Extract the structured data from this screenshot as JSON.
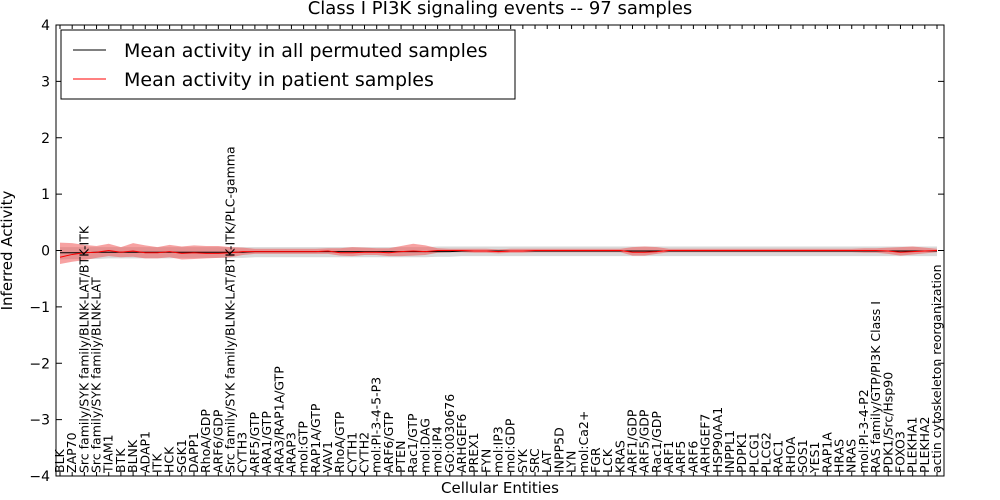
{
  "chart_data": {
    "type": "line",
    "title": "Class I PI3K signaling events -- 97 samples",
    "xlabel": "Cellular Entities",
    "ylabel": "Inferred Activity",
    "ylim": [
      -4,
      4
    ],
    "yticks": [
      "−4",
      "−3",
      "−2",
      "−1",
      "0",
      "1",
      "2",
      "3",
      "4"
    ],
    "legend_position": "top-left",
    "categories": [
      "BLK",
      "ZAP70",
      "Src family/SYK family/BLNK-LAT/BTK-ITK",
      "Src family/SYK family/BLNK-LAT",
      "TIAM1",
      "BTK",
      "BLNK",
      "ADAP1",
      "ITK",
      "HCK",
      "SGK1",
      "DAPP1",
      "RhoA/GDP",
      "ARF6/GDP",
      "Src family/SYK family/BLNK-LAT/BTK-ITK/PLC-gamma",
      "CYTH3",
      "ARF5/GTP",
      "ARA1/GTP",
      "ARA3/RAP1A/GTP",
      "ARAP3",
      "mol:GTP",
      "RAP1A/GTP",
      "VAV1",
      "RhoA/GTP",
      "CYTH1",
      "CYTH2",
      "mol:PI-3-4-5-P3",
      "ARF6/GTP",
      "PTEN",
      "Rac1/GTP",
      "mol:DAG",
      "mol:IP4",
      "GO:0030676",
      "ARHGEF6",
      "PREX1",
      "FYN",
      "mol:IP3",
      "mol:GDP",
      "SYK",
      "SRC",
      "LAT",
      "INPP5D",
      "LYN",
      "mol:Ca2+",
      "FGR",
      "LCK",
      "KRAS",
      "ARF1/GDP",
      "ARF5/GDP",
      "Rac1/GDP",
      "ARF1",
      "ARF5",
      "ARF6",
      "ARHGEF7",
      "HSP90AA1",
      "INPPL1",
      "PDPK1",
      "PLCG1",
      "PLCG2",
      "RAC1",
      "RHOA",
      "SOS1",
      "YES1",
      "RAP1A",
      "HRAS",
      "NRAS",
      "mol:PI-3-4-P2",
      "RAS family/GTP/PI3K Class I",
      "PDK1/Src/Hsp90",
      "FOXO3",
      "PLEKHA1",
      "PLEKHA2",
      "actin cytoskeleton reorganization"
    ],
    "series": [
      {
        "name": "Mean activity in all permuted samples",
        "color": "#000000",
        "values": [
          -0.04,
          -0.04,
          -0.04,
          -0.03,
          -0.03,
          -0.03,
          -0.03,
          -0.03,
          -0.03,
          -0.03,
          -0.03,
          -0.03,
          -0.03,
          -0.03,
          -0.03,
          -0.03,
          -0.02,
          -0.02,
          -0.02,
          -0.02,
          -0.02,
          -0.02,
          -0.02,
          -0.02,
          -0.02,
          -0.02,
          -0.02,
          -0.02,
          -0.02,
          -0.02,
          -0.02,
          -0.02,
          -0.02,
          -0.01,
          -0.01,
          -0.01,
          -0.01,
          -0.01,
          -0.01,
          -0.01,
          -0.01,
          -0.01,
          -0.01,
          -0.01,
          -0.01,
          -0.01,
          -0.01,
          -0.01,
          -0.01,
          -0.01,
          -0.01,
          -0.01,
          -0.01,
          -0.01,
          -0.01,
          -0.01,
          -0.01,
          -0.01,
          -0.01,
          -0.01,
          -0.01,
          -0.01,
          -0.01,
          -0.01,
          -0.01,
          -0.01,
          -0.01,
          -0.01,
          -0.01,
          -0.01,
          -0.01,
          -0.01,
          -0.01
        ],
        "band_low": [
          -0.16,
          -0.15,
          -0.15,
          -0.15,
          -0.14,
          -0.14,
          -0.14,
          -0.14,
          -0.14,
          -0.14,
          -0.13,
          -0.13,
          -0.13,
          -0.13,
          -0.13,
          -0.13,
          -0.12,
          -0.12,
          -0.12,
          -0.12,
          -0.12,
          -0.12,
          -0.12,
          -0.12,
          -0.12,
          -0.12,
          -0.12,
          -0.12,
          -0.12,
          -0.12,
          -0.12,
          -0.11,
          -0.11,
          -0.1,
          -0.1,
          -0.1,
          -0.1,
          -0.1,
          -0.1,
          -0.1,
          -0.1,
          -0.1,
          -0.1,
          -0.1,
          -0.1,
          -0.1,
          -0.1,
          -0.1,
          -0.1,
          -0.1,
          -0.1,
          -0.1,
          -0.1,
          -0.1,
          -0.1,
          -0.1,
          -0.1,
          -0.1,
          -0.1,
          -0.1,
          -0.1,
          -0.1,
          -0.1,
          -0.1,
          -0.1,
          -0.1,
          -0.1,
          -0.1,
          -0.1,
          -0.1,
          -0.1,
          -0.1,
          -0.1
        ],
        "band_high": [
          0.06,
          0.06,
          0.06,
          0.06,
          0.06,
          0.06,
          0.06,
          0.06,
          0.06,
          0.06,
          0.06,
          0.06,
          0.06,
          0.06,
          0.06,
          0.06,
          0.06,
          0.06,
          0.06,
          0.06,
          0.06,
          0.06,
          0.06,
          0.06,
          0.06,
          0.06,
          0.06,
          0.06,
          0.06,
          0.06,
          0.06,
          0.07,
          0.07,
          0.07,
          0.07,
          0.07,
          0.07,
          0.07,
          0.07,
          0.07,
          0.07,
          0.07,
          0.07,
          0.07,
          0.07,
          0.07,
          0.07,
          0.07,
          0.07,
          0.07,
          0.07,
          0.07,
          0.07,
          0.07,
          0.07,
          0.07,
          0.07,
          0.07,
          0.07,
          0.07,
          0.07,
          0.07,
          0.07,
          0.07,
          0.07,
          0.07,
          0.07,
          0.07,
          0.07,
          0.07,
          0.07,
          0.07,
          0.07
        ]
      },
      {
        "name": "Mean activity in patient samples",
        "color": "#ff0000",
        "values": [
          -0.12,
          -0.07,
          -0.04,
          -0.03,
          0.0,
          -0.03,
          -0.01,
          -0.04,
          -0.04,
          -0.02,
          -0.05,
          -0.04,
          -0.05,
          -0.05,
          -0.04,
          -0.02,
          -0.02,
          -0.02,
          -0.02,
          -0.02,
          -0.02,
          -0.02,
          -0.01,
          -0.04,
          -0.04,
          -0.03,
          -0.03,
          -0.04,
          -0.02,
          -0.01,
          -0.02,
          0.0,
          0.0,
          0.0,
          -0.01,
          -0.01,
          -0.02,
          -0.01,
          -0.01,
          0.0,
          0.0,
          0.0,
          0.0,
          0.0,
          0.0,
          0.0,
          0.0,
          -0.03,
          -0.03,
          -0.02,
          0.0,
          0.0,
          0.0,
          0.0,
          0.0,
          0.0,
          0.0,
          0.0,
          0.0,
          0.0,
          0.0,
          0.0,
          0.0,
          0.0,
          0.0,
          0.0,
          0.0,
          0.0,
          -0.01,
          -0.03,
          -0.02,
          -0.01,
          0.0
        ],
        "band_low": [
          -0.24,
          -0.2,
          -0.17,
          -0.13,
          -0.1,
          -0.12,
          -0.11,
          -0.14,
          -0.14,
          -0.12,
          -0.16,
          -0.15,
          -0.14,
          -0.13,
          -0.12,
          -0.08,
          -0.06,
          -0.06,
          -0.06,
          -0.06,
          -0.06,
          -0.06,
          -0.06,
          -0.09,
          -0.1,
          -0.08,
          -0.08,
          -0.1,
          -0.1,
          -0.09,
          -0.08,
          -0.04,
          -0.03,
          -0.03,
          -0.04,
          -0.04,
          -0.05,
          -0.04,
          -0.04,
          -0.03,
          -0.03,
          -0.03,
          -0.03,
          -0.03,
          -0.03,
          -0.03,
          -0.03,
          -0.09,
          -0.09,
          -0.06,
          -0.03,
          -0.03,
          -0.03,
          -0.03,
          -0.03,
          -0.03,
          -0.03,
          -0.03,
          -0.03,
          -0.03,
          -0.03,
          -0.03,
          -0.03,
          -0.03,
          -0.03,
          -0.03,
          -0.04,
          -0.04,
          -0.06,
          -0.09,
          -0.07,
          -0.05,
          -0.03
        ],
        "band_high": [
          0.14,
          0.13,
          0.1,
          0.08,
          0.12,
          0.06,
          0.13,
          0.09,
          0.06,
          0.1,
          0.07,
          0.09,
          0.08,
          0.08,
          0.06,
          0.05,
          0.03,
          0.03,
          0.03,
          0.03,
          0.03,
          0.03,
          0.04,
          0.04,
          0.06,
          0.05,
          0.04,
          0.04,
          0.08,
          0.12,
          0.09,
          0.04,
          0.03,
          0.03,
          0.03,
          0.03,
          0.02,
          0.03,
          0.03,
          0.03,
          0.03,
          0.03,
          0.03,
          0.03,
          0.03,
          0.03,
          0.03,
          0.06,
          0.07,
          0.06,
          0.03,
          0.03,
          0.03,
          0.03,
          0.03,
          0.03,
          0.03,
          0.03,
          0.03,
          0.03,
          0.03,
          0.03,
          0.03,
          0.03,
          0.03,
          0.03,
          0.04,
          0.04,
          0.05,
          0.06,
          0.07,
          0.05,
          0.03
        ]
      }
    ]
  }
}
